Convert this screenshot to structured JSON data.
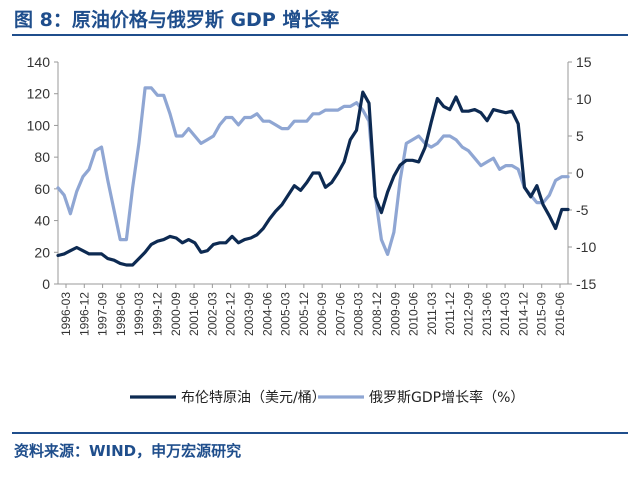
{
  "header": {
    "title": "图 8：原油价格与俄罗斯 GDP 增长率"
  },
  "footer": {
    "source": "资料来源：WIND，申万宏源研究"
  },
  "colors": {
    "brand_blue": "#1f4e8c",
    "oil_series": "#0d2a52",
    "gdp_series": "#8fa6d3"
  },
  "chart_data": {
    "type": "line",
    "title": "",
    "legend_position": "bottom",
    "grid": false,
    "x_labels": [
      "1996-03",
      "1996-12",
      "1997-09",
      "1998-06",
      "1999-03",
      "1999-12",
      "2000-09",
      "2001-06",
      "2002-03",
      "2002-12",
      "2003-09",
      "2004-06",
      "2005-03",
      "2005-12",
      "2006-09",
      "2007-06",
      "2008-03",
      "2008-12",
      "2009-09",
      "2010-06",
      "2011-03",
      "2011-12",
      "2012-09",
      "2013-06",
      "2014-03",
      "2014-12",
      "2015-09",
      "2016-06"
    ],
    "y_left": {
      "min": 0,
      "max": 140,
      "ticks": [
        0,
        20,
        40,
        60,
        80,
        100,
        120,
        140
      ]
    },
    "y_right": {
      "min": -15,
      "max": 15,
      "ticks": [
        -15,
        -10,
        -5,
        0,
        5,
        10,
        15
      ]
    },
    "series": [
      {
        "name": "布伦特原油（美元/桶）",
        "axis": "left",
        "x": [
          1996.125,
          1996.375,
          1996.625,
          1996.875,
          1997.125,
          1997.375,
          1997.625,
          1997.875,
          1998.125,
          1998.375,
          1998.625,
          1998.875,
          1999.125,
          1999.375,
          1999.625,
          1999.875,
          2000.125,
          2000.375,
          2000.625,
          2000.875,
          2001.125,
          2001.375,
          2001.625,
          2001.875,
          2002.125,
          2002.375,
          2002.625,
          2002.875,
          2003.125,
          2003.375,
          2003.625,
          2003.875,
          2004.125,
          2004.375,
          2004.625,
          2004.875,
          2005.125,
          2005.375,
          2005.625,
          2005.875,
          2006.125,
          2006.375,
          2006.625,
          2006.875,
          2007.125,
          2007.375,
          2007.625,
          2007.875,
          2008.125,
          2008.375,
          2008.625,
          2008.875,
          2009.125,
          2009.375,
          2009.625,
          2009.875,
          2010.125,
          2010.375,
          2010.625,
          2010.875,
          2011.125,
          2011.375,
          2011.625,
          2011.875,
          2012.125,
          2012.375,
          2012.625,
          2012.875,
          2013.125,
          2013.375,
          2013.625,
          2013.875,
          2014.125,
          2014.375,
          2014.625,
          2014.875,
          2015.125,
          2015.375,
          2015.625,
          2015.875,
          2016.125,
          2016.375,
          2016.625
        ],
        "values": [
          18,
          19,
          21,
          23,
          21,
          19,
          19,
          19,
          16,
          15,
          13,
          12,
          12,
          16,
          20,
          25,
          27,
          28,
          30,
          29,
          26,
          28,
          26,
          20,
          21,
          25,
          26,
          26,
          30,
          26,
          28,
          29,
          31,
          35,
          41,
          46,
          50,
          56,
          62,
          59,
          64,
          70,
          70,
          61,
          64,
          70,
          77,
          91,
          97,
          121,
          114,
          55,
          45,
          58,
          68,
          75,
          78,
          78,
          77,
          86,
          102,
          117,
          112,
          110,
          118,
          109,
          109,
          110,
          108,
          103,
          110,
          109,
          108,
          109,
          101,
          61,
          55,
          62,
          50,
          43,
          35,
          47,
          47
        ]
      },
      {
        "name": "俄罗斯GDP增长率（%）",
        "axis": "right",
        "x": [
          1996.125,
          1996.375,
          1996.625,
          1996.875,
          1997.125,
          1997.375,
          1997.625,
          1997.875,
          1998.125,
          1998.375,
          1998.625,
          1998.875,
          1999.125,
          1999.375,
          1999.625,
          1999.875,
          2000.125,
          2000.375,
          2000.625,
          2000.875,
          2001.125,
          2001.375,
          2001.625,
          2001.875,
          2002.125,
          2002.375,
          2002.625,
          2002.875,
          2003.125,
          2003.375,
          2003.625,
          2003.875,
          2004.125,
          2004.375,
          2004.625,
          2004.875,
          2005.125,
          2005.375,
          2005.625,
          2005.875,
          2006.125,
          2006.375,
          2006.625,
          2006.875,
          2007.125,
          2007.375,
          2007.625,
          2007.875,
          2008.125,
          2008.375,
          2008.625,
          2008.875,
          2009.125,
          2009.375,
          2009.625,
          2009.875,
          2010.125,
          2010.375,
          2010.625,
          2010.875,
          2011.125,
          2011.375,
          2011.625,
          2011.875,
          2012.125,
          2012.375,
          2012.625,
          2012.875,
          2013.125,
          2013.375,
          2013.625,
          2013.875,
          2014.125,
          2014.375,
          2014.625,
          2014.875,
          2015.125,
          2015.375,
          2015.625,
          2015.875,
          2016.125,
          2016.375,
          2016.625
        ],
        "values": [
          -2,
          -3,
          -5.5,
          -2.5,
          -0.5,
          0.5,
          3,
          3.5,
          -1,
          -5,
          -9,
          -9,
          -2,
          4,
          11.5,
          11.5,
          10.5,
          10.5,
          8,
          5,
          5,
          6,
          5,
          4,
          4.5,
          5,
          6.5,
          7.5,
          7.5,
          6.5,
          7.5,
          7.5,
          8,
          7,
          7,
          6.5,
          6,
          6,
          7,
          7,
          7,
          8,
          8,
          8.5,
          8.5,
          8.5,
          9,
          9,
          9.5,
          8.5,
          7,
          -3,
          -9,
          -11,
          -8,
          -1,
          4,
          4.5,
          5,
          4,
          3.5,
          4,
          5,
          5,
          4.5,
          3.5,
          3,
          2,
          1,
          1.5,
          2,
          0.5,
          1,
          1,
          0.5,
          -2,
          -3,
          -4,
          -4,
          -3,
          -1,
          -0.5,
          -0.5
        ]
      }
    ]
  }
}
